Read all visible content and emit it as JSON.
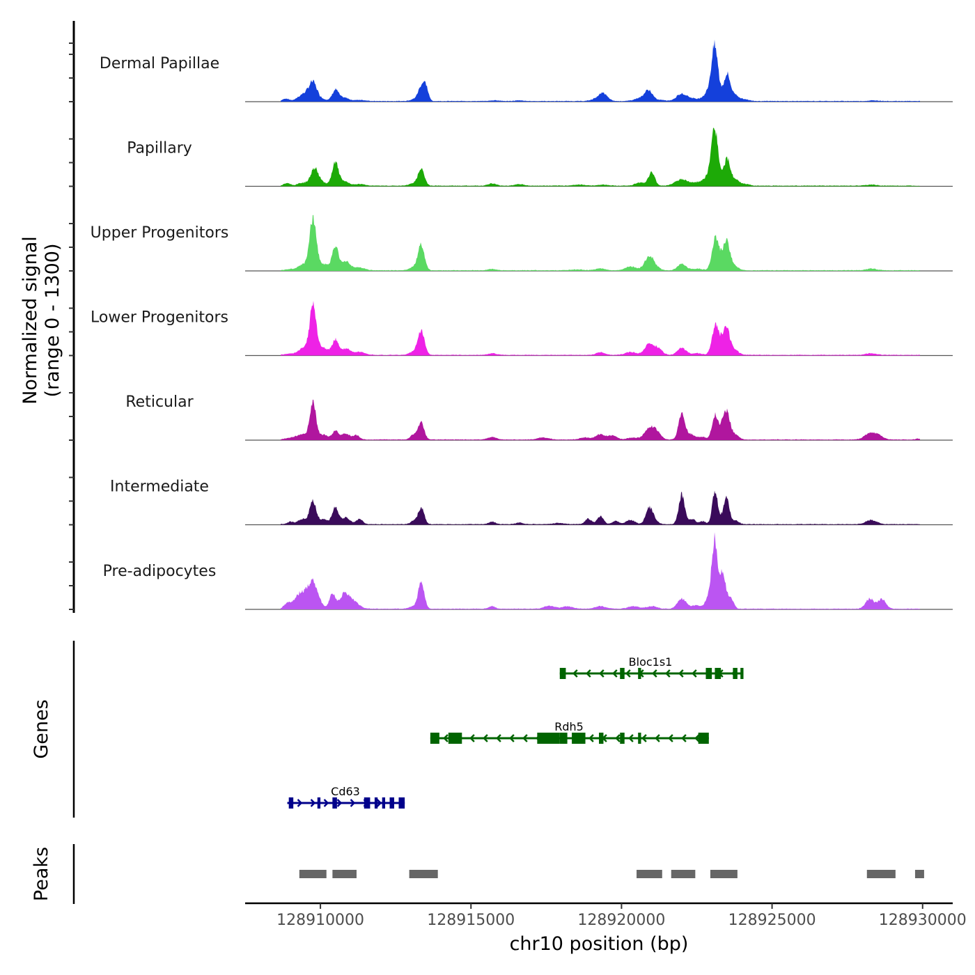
{
  "chart_data": {
    "type": "area",
    "title": "",
    "ylabel": "Normalized signal\n(range 0 - 1300)",
    "ylabel_lines": [
      "Normalized signal",
      "(range 0 - 1300)"
    ],
    "xlabel": "chr10 position (bp)",
    "ylim": [
      0,
      1300
    ],
    "xlim": [
      128907500,
      128931000
    ],
    "x_ticks": [
      128910000,
      128915000,
      128920000,
      128925000,
      128930000
    ],
    "x_tick_labels": [
      "128910000",
      "128915000",
      "128920000",
      "128925000",
      "128930000"
    ],
    "grid": false,
    "legend": "none",
    "series": [
      {
        "name": "Dermal Papillae",
        "color": "#1440DB",
        "peaks": [
          [
            128908850,
            60,
            150
          ],
          [
            128909300,
            70,
            200
          ],
          [
            128909500,
            140,
            200
          ],
          [
            128909750,
            420,
            180
          ],
          [
            128910000,
            60,
            250
          ],
          [
            128910500,
            270,
            150
          ],
          [
            128910800,
            80,
            200
          ],
          [
            128911300,
            30,
            250
          ],
          [
            128913100,
            40,
            200
          ],
          [
            128913350,
            330,
            150
          ],
          [
            128913500,
            300,
            120
          ],
          [
            128915800,
            20,
            200
          ],
          [
            128916600,
            15,
            200
          ],
          [
            128919400,
            160,
            200
          ],
          [
            128919200,
            60,
            250
          ],
          [
            128920900,
            250,
            180
          ],
          [
            128920600,
            70,
            250
          ],
          [
            128921300,
            30,
            250
          ],
          [
            128921900,
            100,
            200
          ],
          [
            128922100,
            120,
            200
          ],
          [
            128922400,
            50,
            200
          ],
          [
            128923100,
            1050,
            150
          ],
          [
            128923000,
            300,
            300
          ],
          [
            128923500,
            600,
            150
          ],
          [
            128923750,
            150,
            200
          ],
          [
            128924100,
            40,
            200
          ],
          [
            128928400,
            15,
            250
          ]
        ]
      },
      {
        "name": "Papillary",
        "color": "#1DAA07",
        "peaks": [
          [
            128908900,
            60,
            150
          ],
          [
            128909400,
            70,
            200
          ],
          [
            128909800,
            370,
            180
          ],
          [
            128910000,
            80,
            300
          ],
          [
            128910500,
            540,
            150
          ],
          [
            128910800,
            100,
            200
          ],
          [
            128911300,
            40,
            250
          ],
          [
            128913100,
            60,
            200
          ],
          [
            128913350,
            380,
            150
          ],
          [
            128915700,
            50,
            200
          ],
          [
            128916600,
            40,
            200
          ],
          [
            128918600,
            25,
            300
          ],
          [
            128919400,
            25,
            250
          ],
          [
            128920600,
            80,
            200
          ],
          [
            128921000,
            320,
            150
          ],
          [
            128922000,
            150,
            300
          ],
          [
            128922500,
            60,
            250
          ],
          [
            128923100,
            1140,
            150
          ],
          [
            128923000,
            300,
            300
          ],
          [
            128923500,
            590,
            150
          ],
          [
            128923750,
            150,
            200
          ],
          [
            128924100,
            40,
            200
          ],
          [
            128928300,
            25,
            250
          ]
        ]
      },
      {
        "name": "Upper Progenitors",
        "color": "#5AD962",
        "peaks": [
          [
            128909000,
            30,
            250
          ],
          [
            128909400,
            130,
            200
          ],
          [
            128909750,
            1230,
            160
          ],
          [
            128910100,
            150,
            250
          ],
          [
            128910500,
            560,
            150
          ],
          [
            128910850,
            210,
            200
          ],
          [
            128911300,
            70,
            250
          ],
          [
            128913100,
            80,
            200
          ],
          [
            128913350,
            600,
            150
          ],
          [
            128915700,
            30,
            200
          ],
          [
            128918500,
            20,
            300
          ],
          [
            128919300,
            50,
            200
          ],
          [
            128920300,
            90,
            250
          ],
          [
            128920900,
            220,
            200
          ],
          [
            128921000,
            150,
            250
          ],
          [
            128922000,
            150,
            200
          ],
          [
            128922500,
            40,
            250
          ],
          [
            128923100,
            600,
            150
          ],
          [
            128923250,
            300,
            200
          ],
          [
            128923500,
            630,
            150
          ],
          [
            128923750,
            100,
            200
          ],
          [
            128928300,
            40,
            250
          ]
        ]
      },
      {
        "name": "Lower Progenitors",
        "color": "#EE22E6",
        "peaks": [
          [
            128909000,
            30,
            250
          ],
          [
            128909400,
            150,
            200
          ],
          [
            128909750,
            1170,
            160
          ],
          [
            128910100,
            170,
            250
          ],
          [
            128910500,
            350,
            150
          ],
          [
            128910850,
            150,
            200
          ],
          [
            128911300,
            70,
            250
          ],
          [
            128913100,
            80,
            200
          ],
          [
            128913350,
            600,
            150
          ],
          [
            128915700,
            40,
            200
          ],
          [
            128919300,
            60,
            200
          ],
          [
            128920300,
            70,
            250
          ],
          [
            128920900,
            240,
            200
          ],
          [
            128921200,
            170,
            200
          ],
          [
            128922000,
            170,
            200
          ],
          [
            128922500,
            40,
            250
          ],
          [
            128923100,
            580,
            150
          ],
          [
            128923300,
            300,
            200
          ],
          [
            128923500,
            520,
            150
          ],
          [
            128923750,
            120,
            200
          ],
          [
            128928300,
            40,
            250
          ]
        ]
      },
      {
        "name": "Reticular",
        "color": "#B0169E",
        "peaks": [
          [
            128909000,
            40,
            250
          ],
          [
            128909400,
            120,
            250
          ],
          [
            128909750,
            920,
            140
          ],
          [
            128910100,
            120,
            200
          ],
          [
            128910500,
            200,
            150
          ],
          [
            128910850,
            140,
            200
          ],
          [
            128911200,
            100,
            150
          ],
          [
            128913100,
            120,
            150
          ],
          [
            128913350,
            400,
            140
          ],
          [
            128915700,
            60,
            200
          ],
          [
            128917400,
            50,
            250
          ],
          [
            128918800,
            50,
            250
          ],
          [
            128919300,
            130,
            200
          ],
          [
            128919700,
            100,
            200
          ],
          [
            128920400,
            50,
            250
          ],
          [
            128920900,
            250,
            200
          ],
          [
            128921150,
            200,
            200
          ],
          [
            128922000,
            600,
            150
          ],
          [
            128922300,
            120,
            200
          ],
          [
            128922700,
            60,
            200
          ],
          [
            128923100,
            600,
            130
          ],
          [
            128923350,
            300,
            150
          ],
          [
            128923500,
            560,
            150
          ],
          [
            128923750,
            120,
            200
          ],
          [
            128928250,
            150,
            250
          ],
          [
            128928550,
            90,
            200
          ],
          [
            128929850,
            20,
            150
          ]
        ]
      },
      {
        "name": "Intermediate",
        "color": "#3A0B5A",
        "peaks": [
          [
            128909000,
            60,
            150
          ],
          [
            128909400,
            120,
            200
          ],
          [
            128909750,
            570,
            150
          ],
          [
            128910100,
            120,
            200
          ],
          [
            128910500,
            400,
            150
          ],
          [
            128910850,
            150,
            200
          ],
          [
            128911300,
            120,
            150
          ],
          [
            128913100,
            80,
            150
          ],
          [
            128913350,
            400,
            140
          ],
          [
            128915700,
            60,
            150
          ],
          [
            128916600,
            40,
            150
          ],
          [
            128917900,
            30,
            250
          ],
          [
            128918900,
            130,
            150
          ],
          [
            128919300,
            200,
            150
          ],
          [
            128919800,
            80,
            150
          ],
          [
            128920300,
            100,
            200
          ],
          [
            128920900,
            250,
            150
          ],
          [
            128921000,
            180,
            200
          ],
          [
            128922000,
            700,
            140
          ],
          [
            128922350,
            120,
            150
          ],
          [
            128922700,
            70,
            150
          ],
          [
            128923100,
            780,
            120
          ],
          [
            128923300,
            150,
            150
          ],
          [
            128923500,
            600,
            130
          ],
          [
            128923800,
            80,
            150
          ],
          [
            128928300,
            100,
            250
          ]
        ]
      },
      {
        "name": "Pre-adipocytes",
        "color": "#BB55F2",
        "peaks": [
          [
            128908900,
            120,
            150
          ],
          [
            128909300,
            220,
            250
          ],
          [
            128909750,
            600,
            250
          ],
          [
            128909400,
            150,
            300
          ],
          [
            128910400,
            350,
            150
          ],
          [
            128910800,
            350,
            200
          ],
          [
            128911100,
            180,
            250
          ],
          [
            128913100,
            60,
            200
          ],
          [
            128913350,
            650,
            140
          ],
          [
            128915700,
            60,
            150
          ],
          [
            128917600,
            70,
            250
          ],
          [
            128918200,
            60,
            250
          ],
          [
            128919300,
            60,
            250
          ],
          [
            128920400,
            60,
            250
          ],
          [
            128921000,
            60,
            250
          ],
          [
            128922000,
            250,
            200
          ],
          [
            128922500,
            80,
            250
          ],
          [
            128923100,
            1230,
            120
          ],
          [
            128923000,
            500,
            200
          ],
          [
            128923350,
            850,
            130
          ],
          [
            128923600,
            300,
            150
          ],
          [
            128928250,
            240,
            200
          ],
          [
            128928650,
            230,
            180
          ]
        ]
      }
    ],
    "genes": [
      {
        "name": "Bloc1s1",
        "strand": "-",
        "color": "#006400",
        "start": 128917950,
        "end": 128924050,
        "exons": [
          [
            128917950,
            128918150
          ],
          [
            128919950,
            128920100
          ],
          [
            128920550,
            128920650
          ],
          [
            128922800,
            128923000
          ],
          [
            128923100,
            128923300
          ],
          [
            128923700,
            128923850
          ],
          [
            128923950,
            128924050
          ]
        ]
      },
      {
        "name": "Rdh5",
        "strand": "-",
        "color": "#006400",
        "start": 128913650,
        "end": 128922900,
        "exons": [
          [
            128913650,
            128913950
          ],
          [
            128914250,
            128914700
          ],
          [
            128917200,
            128917950
          ],
          [
            128917950,
            128918200
          ],
          [
            128918350,
            128918800
          ],
          [
            128919250,
            128919400
          ],
          [
            128919950,
            128920100
          ],
          [
            128920550,
            128920650
          ],
          [
            128922550,
            128922900
          ]
        ]
      },
      {
        "name": "Cd63",
        "strand": "+",
        "color": "#00008B",
        "start": 128908900,
        "end": 128912800,
        "exons": [
          [
            128908950,
            128909100
          ],
          [
            128909900,
            128910000
          ],
          [
            128910400,
            128910550
          ],
          [
            128911450,
            128911650
          ],
          [
            128911800,
            128911900
          ],
          [
            128912050,
            128912150
          ],
          [
            128912300,
            128912450
          ],
          [
            128912600,
            128912800
          ]
        ]
      }
    ],
    "peaks": [
      [
        128909300,
        128910200
      ],
      [
        128910400,
        128911200
      ],
      [
        128912950,
        128913900
      ],
      [
        128920500,
        128921350
      ],
      [
        128921650,
        128922450
      ],
      [
        128922950,
        128923850
      ],
      [
        128928150,
        128929100
      ],
      [
        128929750,
        128930050
      ]
    ],
    "panels": {
      "signal": "Normalized signal",
      "genes_label": "Genes",
      "peaks_label": "Peaks"
    }
  }
}
